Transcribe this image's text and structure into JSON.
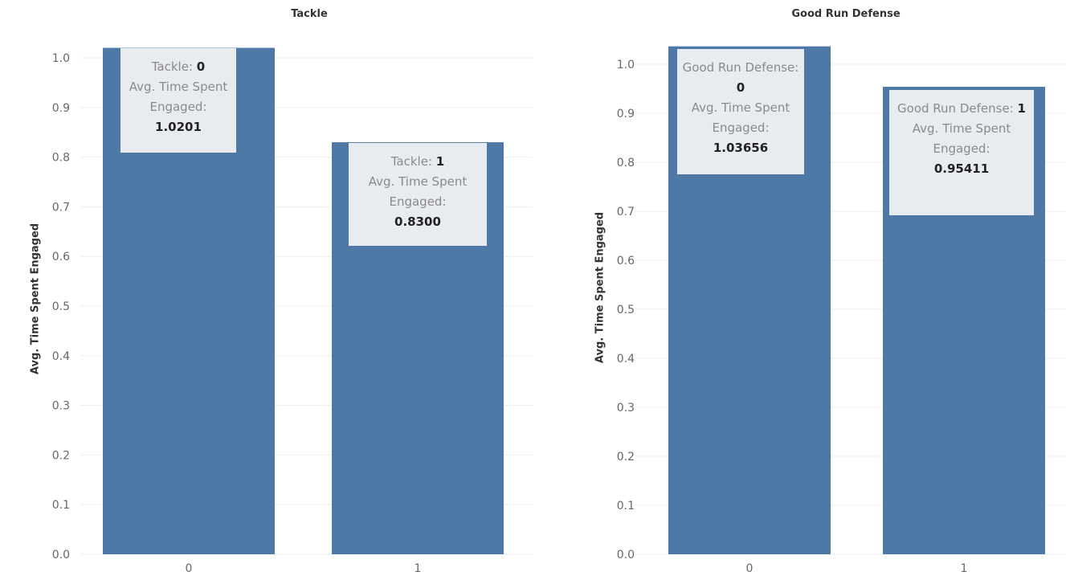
{
  "chart_data": [
    {
      "type": "bar",
      "title": "Tackle",
      "xlabel": "",
      "ylabel": "Avg. Time Spent Engaged",
      "categories": [
        "0",
        "1"
      ],
      "values": [
        1.0201,
        0.83
      ],
      "ylim": [
        0,
        1.05
      ],
      "yticks": [
        "0.0",
        "0.1",
        "0.2",
        "0.3",
        "0.4",
        "0.5",
        "0.6",
        "0.7",
        "0.8",
        "0.9",
        "1.0"
      ],
      "grid": true,
      "bar_color": "#4e79a7",
      "tooltips": [
        {
          "field_label": "Tackle:",
          "field_value": "0",
          "measure_label": "Avg. Time Spent Engaged:",
          "measure_value": "1.0201"
        },
        {
          "field_label": "Tackle:",
          "field_value": "1",
          "measure_label": "Avg. Time Spent Engaged:",
          "measure_value": "0.8300"
        }
      ]
    },
    {
      "type": "bar",
      "title": "Good Run Defense",
      "xlabel": "",
      "ylabel": "Avg. Time Spent Engaged",
      "categories": [
        "0",
        "1"
      ],
      "values": [
        1.03656,
        0.95411
      ],
      "ylim": [
        0,
        1.05
      ],
      "yticks": [
        "0.0",
        "0.1",
        "0.2",
        "0.3",
        "0.4",
        "0.5",
        "0.6",
        "0.7",
        "0.8",
        "0.9",
        "1.0"
      ],
      "grid": true,
      "bar_color": "#4e79a7",
      "tooltips": [
        {
          "field_label": "Good Run Defense:",
          "field_value": "0",
          "measure_label": "Avg. Time Spent Engaged:",
          "measure_value": "1.03656"
        },
        {
          "field_label": "Good Run Defense:",
          "field_value": "1",
          "measure_label": "Avg. Time Spent Engaged:",
          "measure_value": "0.95411"
        }
      ]
    }
  ]
}
